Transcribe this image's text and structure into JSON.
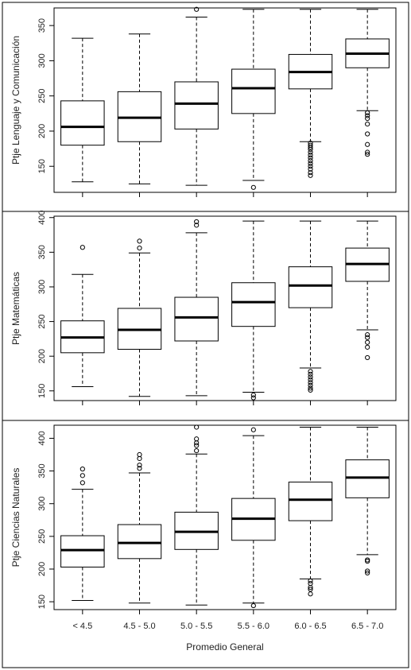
{
  "categories": [
    "< 4.5",
    "4.5 - 5.0",
    "5.0 - 5.5",
    "5.5 - 6.0",
    "6.0 - 6.5",
    "6.5 - 7.0"
  ],
  "xlabel": "Promedio General",
  "chart_data": [
    {
      "type": "boxplot",
      "ylabel": "Ptje Lenguaje y Comunicación",
      "yticks": [
        150,
        200,
        250,
        300,
        350
      ],
      "ylim": [
        113,
        375
      ],
      "boxes": [
        {
          "min": 128,
          "q1": 180,
          "median": 206,
          "q3": 243,
          "max": 332,
          "outliers": []
        },
        {
          "min": 125,
          "q1": 185,
          "median": 219,
          "q3": 256,
          "max": 338,
          "outliers": []
        },
        {
          "min": 123,
          "q1": 203,
          "median": 239,
          "q3": 270,
          "max": 362,
          "outliers": [
            373
          ]
        },
        {
          "min": 130,
          "q1": 225,
          "median": 261,
          "q3": 288,
          "max": 373,
          "outliers": [
            120
          ]
        },
        {
          "min": 185,
          "q1": 260,
          "median": 284,
          "q3": 309,
          "max": 373,
          "outliers": [
            183,
            180,
            177,
            174,
            170,
            166,
            162,
            158,
            154,
            150,
            146,
            141,
            137
          ]
        },
        {
          "min": 229,
          "q1": 290,
          "median": 310,
          "q3": 331,
          "max": 373,
          "outliers": [
            226,
            222,
            218,
            210,
            196,
            181,
            170,
            167
          ]
        }
      ]
    },
    {
      "type": "boxplot",
      "ylabel": "Ptje Matemáticas",
      "yticks": [
        150,
        200,
        250,
        300,
        350,
        400
      ],
      "ylim": [
        136,
        402
      ],
      "boxes": [
        {
          "min": 156,
          "q1": 205,
          "median": 227,
          "q3": 251,
          "max": 318,
          "outliers": [
            357
          ]
        },
        {
          "min": 142,
          "q1": 210,
          "median": 238,
          "q3": 269,
          "max": 349,
          "outliers": [
            356,
            366
          ]
        },
        {
          "min": 143,
          "q1": 222,
          "median": 256,
          "q3": 285,
          "max": 378,
          "outliers": [
            389,
            394
          ]
        },
        {
          "min": 148,
          "q1": 243,
          "median": 278,
          "q3": 306,
          "max": 395,
          "outliers": [
            144,
            140
          ]
        },
        {
          "min": 183,
          "q1": 270,
          "median": 302,
          "q3": 329,
          "max": 395,
          "outliers": [
            178,
            174,
            170,
            166,
            162,
            158,
            154,
            151
          ]
        },
        {
          "min": 238,
          "q1": 308,
          "median": 333,
          "q3": 356,
          "max": 395,
          "outliers": [
            231,
            227,
            220,
            213,
            198
          ]
        }
      ]
    },
    {
      "type": "boxplot",
      "ylabel": "Ptje Ciencias Naturales",
      "yticks": [
        150,
        200,
        250,
        300,
        350,
        400
      ],
      "ylim": [
        138,
        420
      ],
      "boxes": [
        {
          "min": 152,
          "q1": 203,
          "median": 229,
          "q3": 251,
          "max": 322,
          "outliers": [
            332,
            343,
            353
          ]
        },
        {
          "min": 148,
          "q1": 216,
          "median": 240,
          "q3": 268,
          "max": 347,
          "outliers": [
            354,
            359,
            369,
            375
          ]
        },
        {
          "min": 145,
          "q1": 230,
          "median": 257,
          "q3": 287,
          "max": 376,
          "outliers": [
            381,
            389,
            393,
            399,
            417
          ]
        },
        {
          "min": 148,
          "q1": 244,
          "median": 277,
          "q3": 308,
          "max": 404,
          "outliers": [
            144,
            413
          ]
        },
        {
          "min": 185,
          "q1": 274,
          "median": 306,
          "q3": 333,
          "max": 417,
          "outliers": [
            182,
            178,
            172,
            169,
            162
          ]
        },
        {
          "min": 222,
          "q1": 309,
          "median": 340,
          "q3": 367,
          "max": 417,
          "outliers": [
            214,
            212,
            197,
            194
          ]
        }
      ]
    }
  ]
}
